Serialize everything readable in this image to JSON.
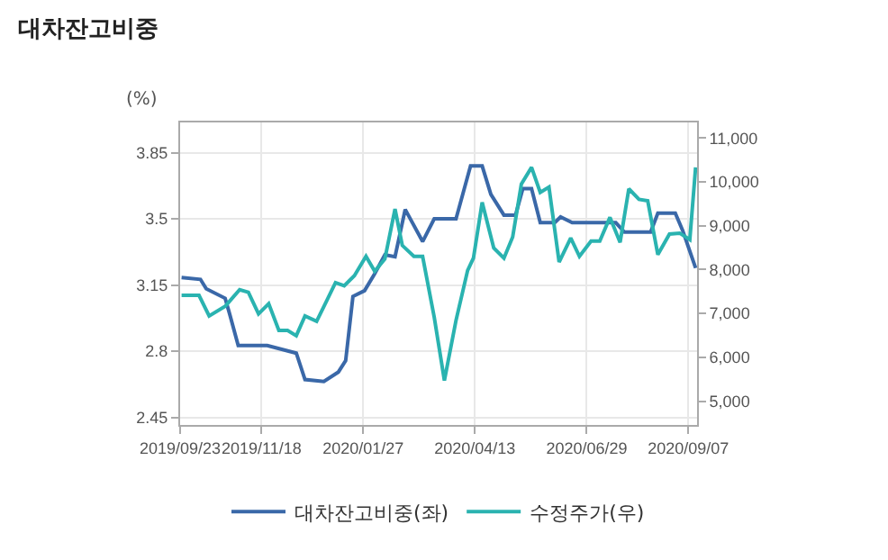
{
  "chart_data": {
    "type": "line",
    "title": "대차잔고비중",
    "ylabel": "(%)",
    "xlim": [
      "2019-09-23",
      "2020-09-13"
    ],
    "xticks": [
      {
        "value": "2019-09-23",
        "label": "2019/09/23"
      },
      {
        "value": "2019-11-18",
        "label": "2019/11/18"
      },
      {
        "value": "2020-01-27",
        "label": "2020/01/27"
      },
      {
        "value": "2020-04-13",
        "label": "2020/04/13"
      },
      {
        "value": "2020-06-29",
        "label": "2020/06/29"
      },
      {
        "value": "2020-09-07",
        "label": "2020/09/07"
      }
    ],
    "ylim": [
      2.41,
      4.01
    ],
    "yticks": [
      2.45,
      2.8,
      3.15,
      3.5,
      3.85
    ],
    "y2lim": [
      4456,
      11354
    ],
    "y2ticks": [
      {
        "value": 5000,
        "label": "5,000"
      },
      {
        "value": 6000,
        "label": "6,000"
      },
      {
        "value": 7000,
        "label": "7,000"
      },
      {
        "value": 8000,
        "label": "8,000"
      },
      {
        "value": 9000,
        "label": "9,000"
      },
      {
        "value": 10000,
        "label": "10,000"
      },
      {
        "value": 11000,
        "label": "11,000"
      }
    ],
    "grid": true,
    "legend": "bottom",
    "marker": "none",
    "line_style": "solid",
    "series": [
      {
        "name": "대차잔고비중(좌)",
        "color": "#3a68a8",
        "x": [
          "2019-09-24",
          "2019-10-07",
          "2019-10-11",
          "2019-10-24",
          "2019-10-27",
          "2019-11-02",
          "2019-11-22",
          "2019-12-12",
          "2019-12-18",
          "2019-12-31",
          "2020-01-10",
          "2020-01-15",
          "2020-01-20",
          "2020-01-28",
          "2020-02-04",
          "2020-02-11",
          "2020-02-18",
          "2020-02-25",
          "2020-03-08",
          "2020-03-16",
          "2020-03-31",
          "2020-04-10",
          "2020-04-18",
          "2020-04-24",
          "2020-05-03",
          "2020-05-11",
          "2020-05-16",
          "2020-05-22",
          "2020-05-28",
          "2020-06-07",
          "2020-06-11",
          "2020-06-19",
          "2020-07-19",
          "2020-07-25",
          "2020-08-12",
          "2020-08-17",
          "2020-08-29",
          "2020-09-03",
          "2020-09-12"
        ],
        "values": [
          3.19,
          3.18,
          3.13,
          3.08,
          3.0,
          2.83,
          2.83,
          2.79,
          2.65,
          2.64,
          2.69,
          2.75,
          3.09,
          3.12,
          3.21,
          3.31,
          3.3,
          3.55,
          3.38,
          3.5,
          3.5,
          3.78,
          3.78,
          3.63,
          3.52,
          3.52,
          3.66,
          3.66,
          3.48,
          3.48,
          3.51,
          3.48,
          3.48,
          3.43,
          3.43,
          3.53,
          3.53,
          3.44,
          3.24
        ]
      },
      {
        "name": "수정주가(우)",
        "color": "#2ab3b0",
        "axis": "y2",
        "x": [
          "2019-09-24",
          "2019-10-06",
          "2019-10-13",
          "2019-10-24",
          "2019-11-03",
          "2019-11-09",
          "2019-11-16",
          "2019-11-23",
          "2019-11-30",
          "2019-12-06",
          "2019-12-12",
          "2019-12-18",
          "2019-12-26",
          "2020-01-02",
          "2020-01-08",
          "2020-01-14",
          "2020-01-21",
          "2020-01-29",
          "2020-02-04",
          "2020-02-11",
          "2020-02-18",
          "2020-02-23",
          "2020-03-02",
          "2020-03-08",
          "2020-03-16",
          "2020-03-23",
          "2020-03-31",
          "2020-04-08",
          "2020-04-12",
          "2020-04-18",
          "2020-04-26",
          "2020-05-03",
          "2020-05-09",
          "2020-05-15",
          "2020-05-22",
          "2020-05-28",
          "2020-06-03",
          "2020-06-10",
          "2020-06-18",
          "2020-06-24",
          "2020-07-02",
          "2020-07-08",
          "2020-07-15",
          "2020-07-22",
          "2020-07-28",
          "2020-08-04",
          "2020-08-10",
          "2020-08-17",
          "2020-08-25",
          "2020-09-01",
          "2020-09-08",
          "2020-09-12"
        ],
        "values": [
          7410,
          7410,
          6940,
          7160,
          7540,
          7480,
          6990,
          7220,
          6610,
          6610,
          6490,
          6940,
          6820,
          7290,
          7700,
          7630,
          7860,
          8300,
          7960,
          8240,
          9380,
          8550,
          8300,
          8300,
          6910,
          5470,
          6840,
          7980,
          8260,
          9530,
          8490,
          8260,
          8740,
          9950,
          10330,
          9760,
          9880,
          8170,
          8720,
          8300,
          8650,
          8650,
          9190,
          8620,
          9840,
          9600,
          9570,
          8340,
          8810,
          8830,
          8680,
          10330
        ]
      }
    ]
  }
}
